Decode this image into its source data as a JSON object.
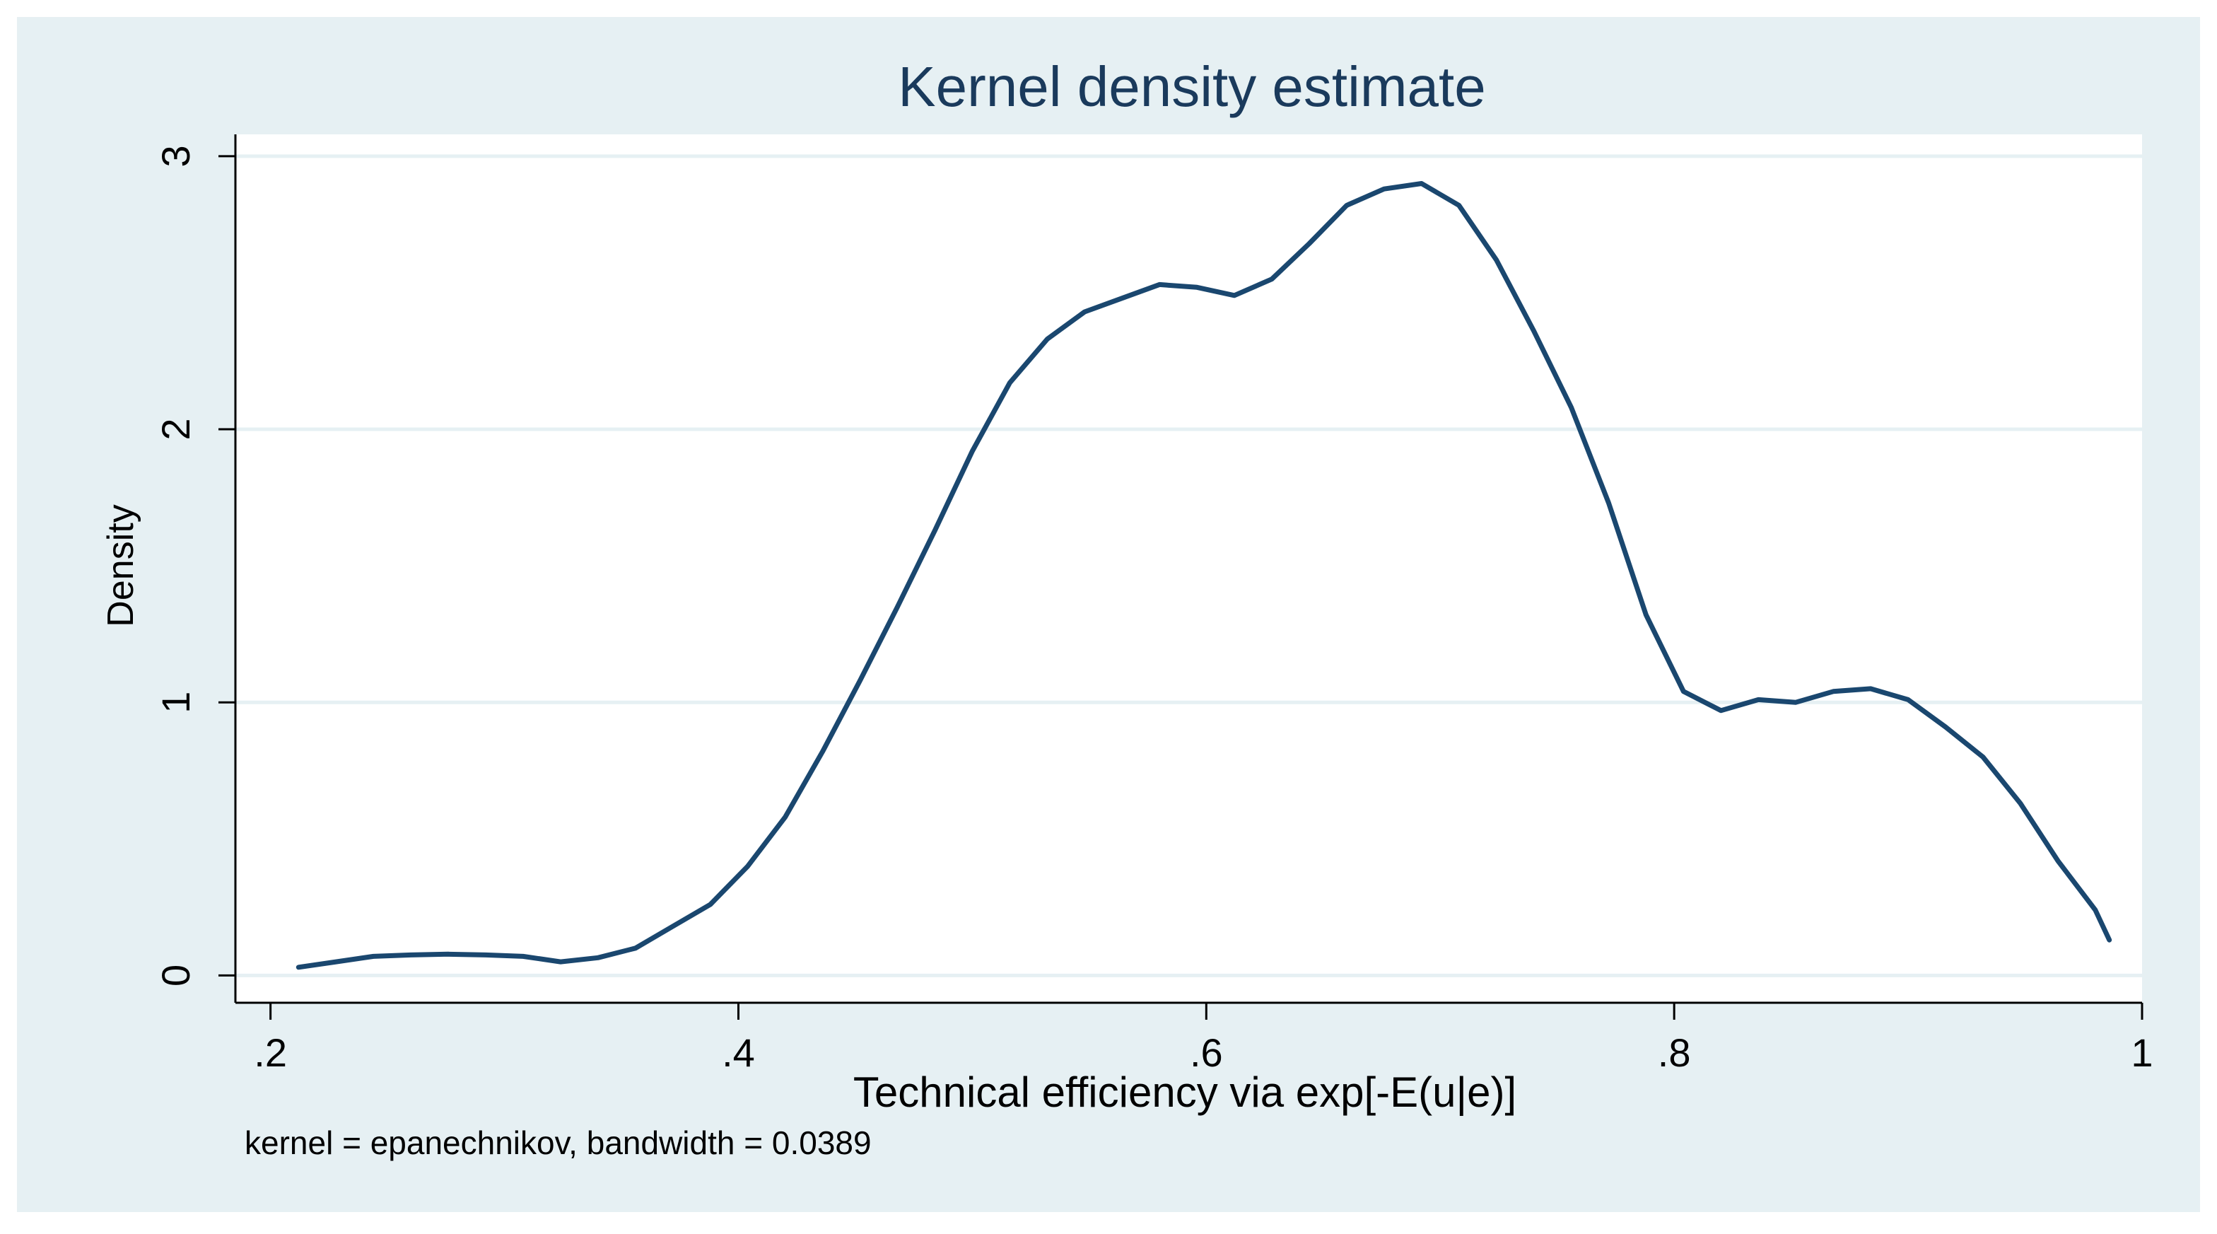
{
  "chart_data": {
    "type": "line",
    "title": "Kernel density estimate",
    "xlabel": "Technical efficiency via exp[-E(u|e)]",
    "ylabel": "Density",
    "note": "kernel = epanechnikov, bandwidth = 0.0389",
    "xlim": [
      0.185,
      1.0
    ],
    "ylim": [
      -0.1,
      3.08
    ],
    "x_ticks": [
      0.2,
      0.4,
      0.6,
      0.8,
      1.0
    ],
    "x_tick_labels": [
      ".2",
      ".4",
      ".6",
      ".8",
      "1"
    ],
    "y_ticks": [
      0,
      1,
      2,
      3
    ],
    "y_tick_labels": [
      "0",
      "1",
      "2",
      "3"
    ],
    "grid": true,
    "series": [
      {
        "name": "density",
        "x": [
          0.212,
          0.228,
          0.244,
          0.26,
          0.276,
          0.292,
          0.308,
          0.324,
          0.34,
          0.356,
          0.372,
          0.388,
          0.404,
          0.42,
          0.436,
          0.452,
          0.468,
          0.484,
          0.5,
          0.516,
          0.532,
          0.548,
          0.564,
          0.58,
          0.596,
          0.612,
          0.628,
          0.644,
          0.66,
          0.676,
          0.692,
          0.708,
          0.724,
          0.74,
          0.756,
          0.772,
          0.788,
          0.804,
          0.82,
          0.836,
          0.852,
          0.868,
          0.884,
          0.9,
          0.916,
          0.932,
          0.948,
          0.964,
          0.98,
          0.986
        ],
        "y": [
          0.03,
          0.05,
          0.07,
          0.075,
          0.078,
          0.075,
          0.07,
          0.05,
          0.065,
          0.1,
          0.18,
          0.26,
          0.4,
          0.58,
          0.82,
          1.08,
          1.35,
          1.63,
          1.92,
          2.17,
          2.33,
          2.43,
          2.48,
          2.53,
          2.52,
          2.49,
          2.55,
          2.68,
          2.82,
          2.88,
          2.9,
          2.82,
          2.62,
          2.36,
          2.08,
          1.73,
          1.32,
          1.04,
          0.97,
          1.01,
          1.0,
          1.04,
          1.05,
          1.01,
          0.91,
          0.8,
          0.63,
          0.42,
          0.24,
          0.13
        ]
      }
    ],
    "colors": {
      "outer_bg": "#e6f0f3",
      "plot_bg": "#ffffff",
      "grid": "#e6f0f3",
      "line": "#1a476f",
      "title": "#1a3a5c"
    }
  }
}
